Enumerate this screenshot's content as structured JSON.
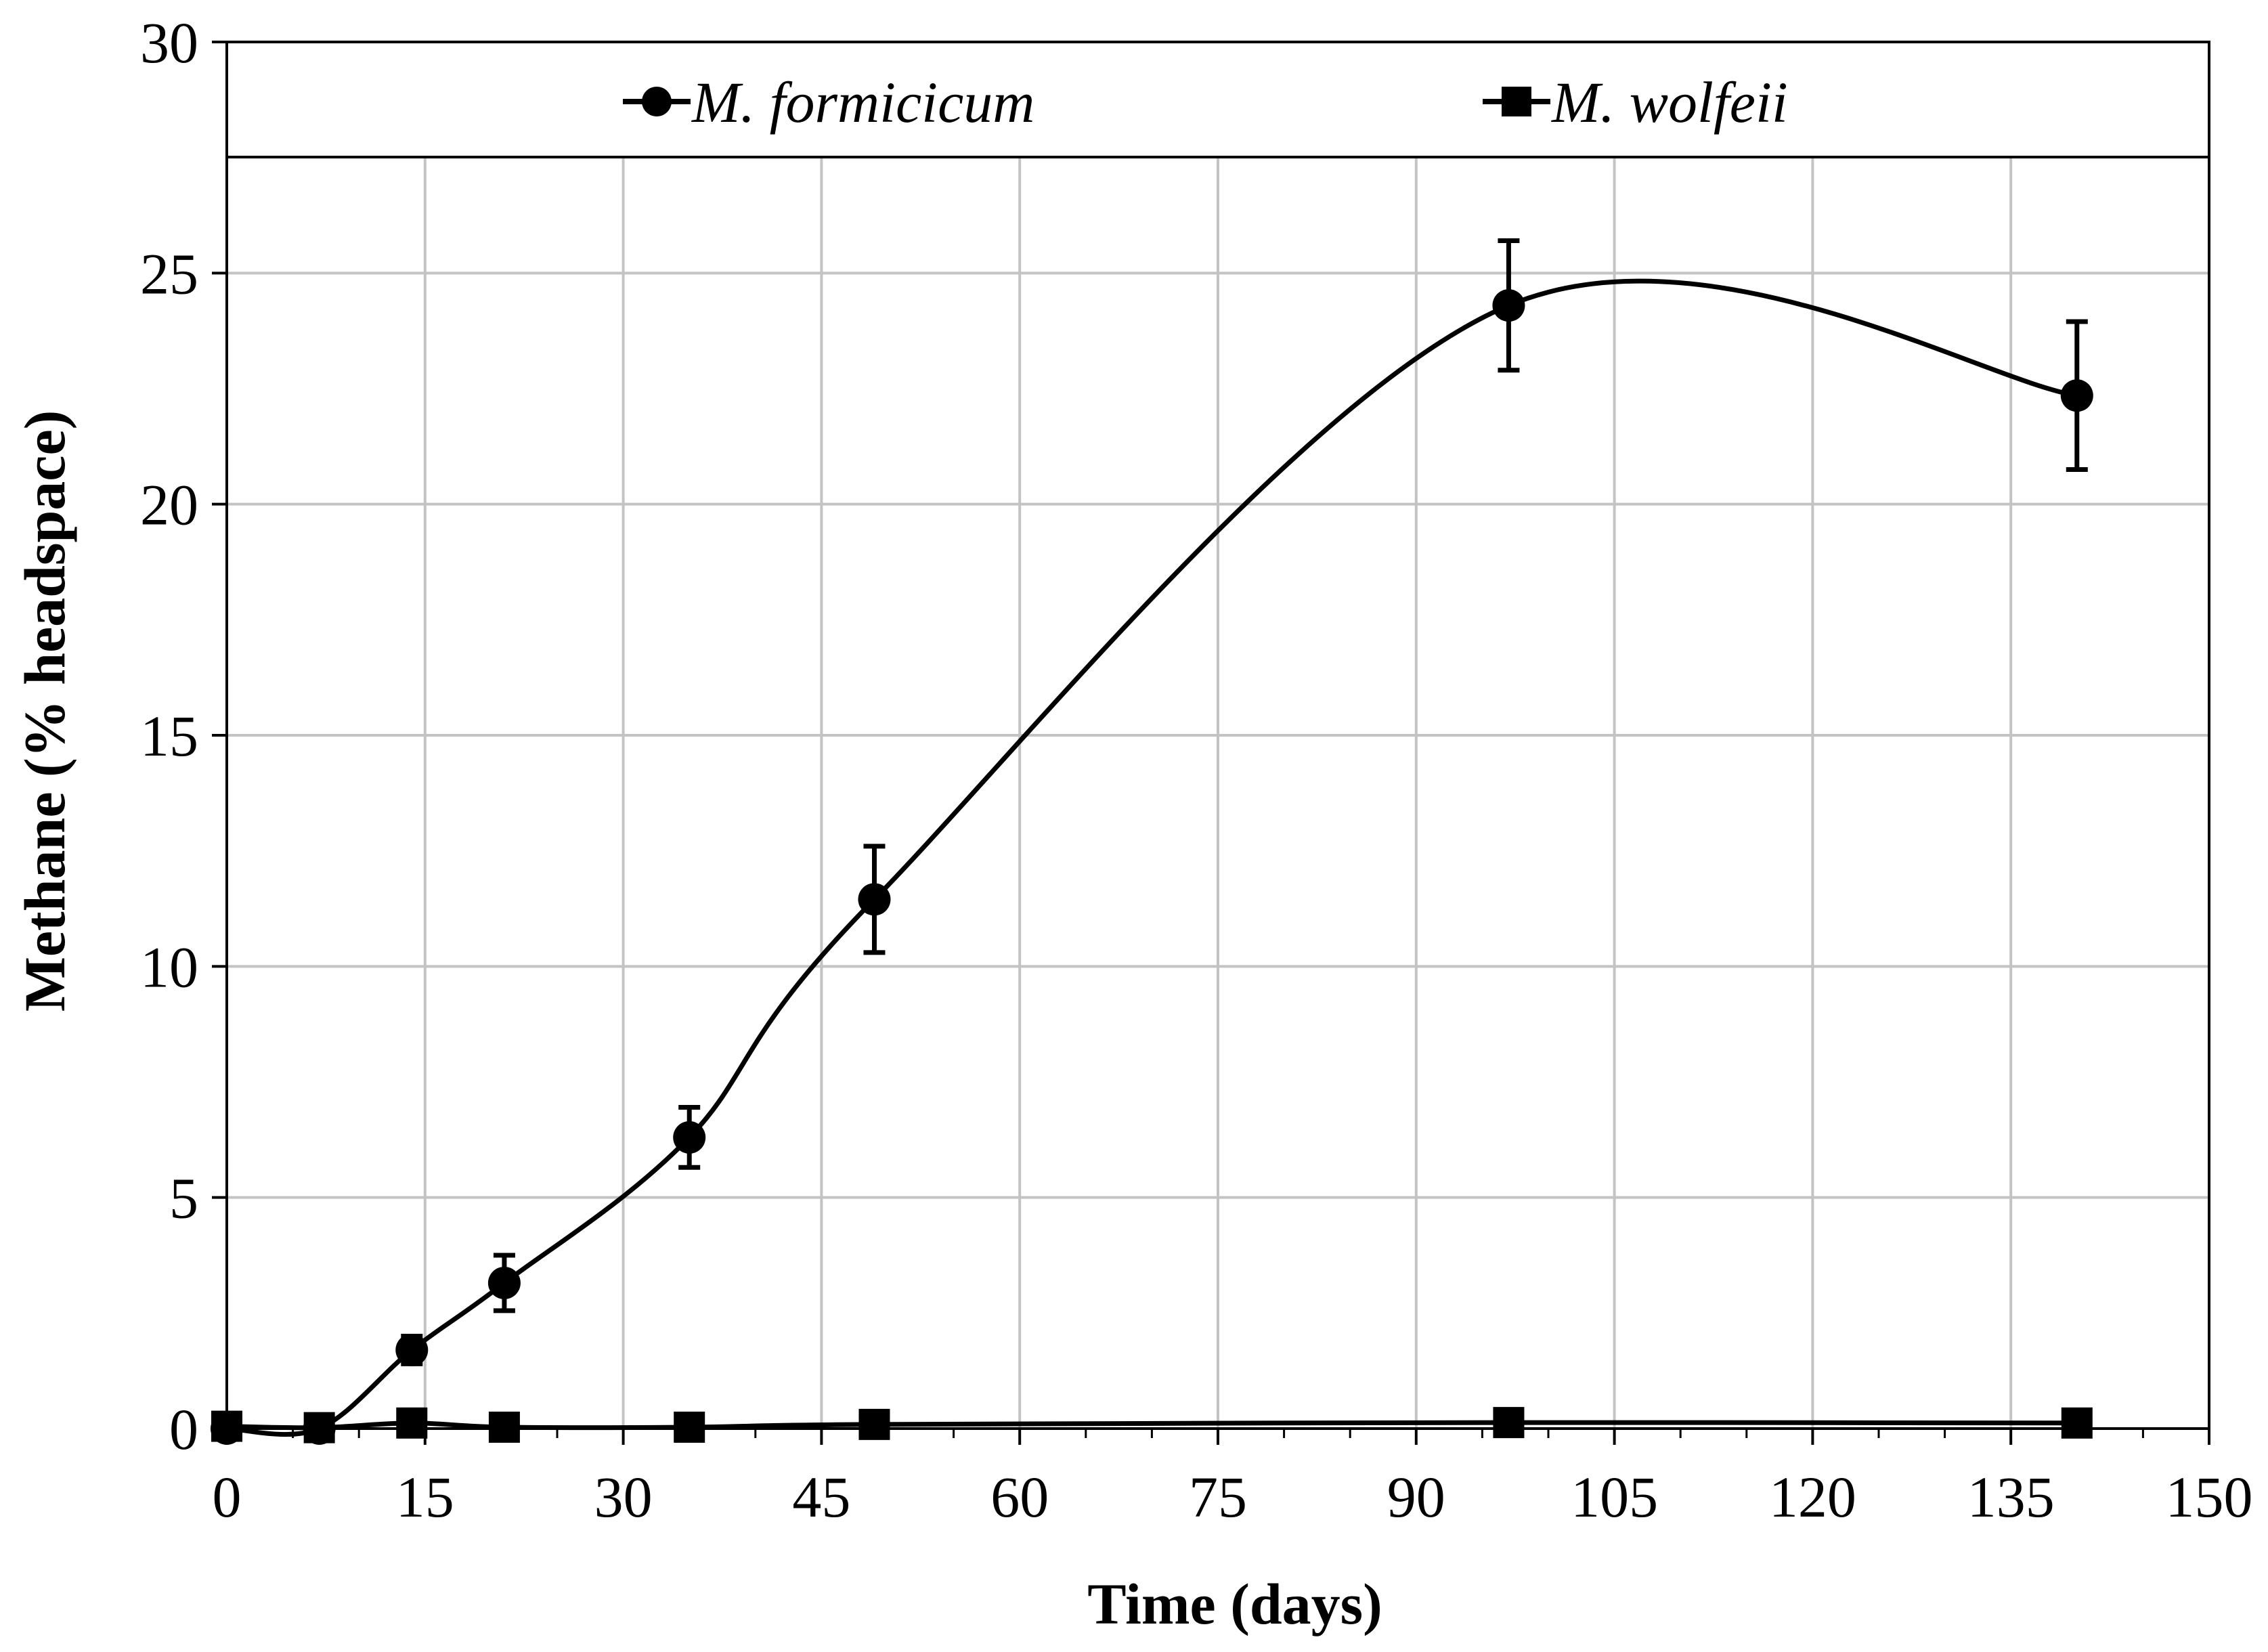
{
  "chart_data": {
    "type": "line",
    "title": "",
    "xlabel": "Time (days)",
    "ylabel": "Methane (% headspace)",
    "xlim": [
      0,
      150
    ],
    "ylim": [
      0,
      30
    ],
    "xticks": [
      0,
      15,
      30,
      45,
      60,
      75,
      90,
      105,
      120,
      135,
      150
    ],
    "yticks": [
      0,
      5,
      10,
      15,
      20,
      25,
      30
    ],
    "xtick_labels": [
      "0",
      "15",
      "30",
      "45",
      "60",
      "75",
      "90",
      "105",
      "120",
      "135",
      "150"
    ],
    "ytick_labels": [
      "0",
      "5",
      "10",
      "15",
      "20",
      "25",
      "30"
    ],
    "grid": true,
    "legend": "top",
    "series": [
      {
        "name": "M. formicicum",
        "marker": "circle",
        "color": "#000000",
        "smooth": true,
        "x": [
          0,
          7,
          14,
          21,
          35,
          49,
          97,
          140
        ],
        "y": [
          0,
          0,
          1.7,
          3.15,
          6.3,
          11.45,
          24.3,
          22.35
        ],
        "error": [
          0,
          0,
          0.3,
          0.6,
          0.65,
          1.15,
          1.4,
          1.6
        ]
      },
      {
        "name": "M. wolfeii",
        "marker": "square",
        "color": "#000000",
        "smooth": true,
        "x": [
          0,
          7,
          14,
          21,
          35,
          49,
          97,
          140
        ],
        "y": [
          0.05,
          0.02,
          0.12,
          0.03,
          0.03,
          0.09,
          0.13,
          0.12
        ],
        "error": [
          0,
          0,
          0,
          0,
          0,
          0,
          0,
          0
        ]
      }
    ]
  }
}
